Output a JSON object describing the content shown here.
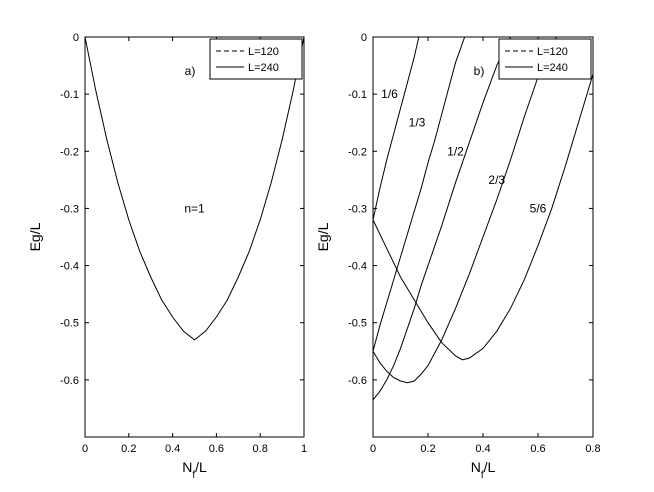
{
  "chart_data": [
    {
      "type": "line",
      "panel_label": "a)",
      "xlabel": "N_f/L",
      "ylabel": "Eg/L",
      "xlim": [
        0,
        1
      ],
      "ylim": [
        -0.7,
        0
      ],
      "xticks": [
        0,
        0.2,
        0.4,
        0.6,
        0.8,
        1
      ],
      "xtick_labels": [
        "0",
        "0.2",
        "0.4",
        "0.6",
        "0.8",
        "1"
      ],
      "yticks": [
        0,
        -0.1,
        -0.2,
        -0.3,
        -0.4,
        -0.5,
        -0.6
      ],
      "ytick_labels": [
        "0",
        "-0.1",
        "-0.2",
        "-0.3",
        "-0.4",
        "-0.5",
        "-0.6"
      ],
      "legend": {
        "position": "top-right",
        "entries": [
          {
            "label": "L=120",
            "style": "dashed"
          },
          {
            "label": "L=240",
            "style": "solid"
          }
        ]
      },
      "grid": false,
      "series": [
        {
          "label": "n=1",
          "label_at": [
            0.5,
            -0.3
          ],
          "x": [
            0,
            0.05,
            0.1,
            0.15,
            0.2,
            0.25,
            0.3,
            0.35,
            0.4,
            0.45,
            0.5,
            0.55,
            0.6,
            0.65,
            0.7,
            0.75,
            0.8,
            0.85,
            0.9,
            0.95,
            1.0
          ],
          "y": [
            0,
            -0.095,
            -0.18,
            -0.255,
            -0.32,
            -0.375,
            -0.42,
            -0.46,
            -0.49,
            -0.515,
            -0.53,
            -0.515,
            -0.49,
            -0.46,
            -0.42,
            -0.375,
            -0.32,
            -0.255,
            -0.18,
            -0.095,
            0
          ]
        }
      ]
    },
    {
      "type": "line",
      "panel_label": "b)",
      "xlabel": "N_f/L",
      "ylabel": "Eg/L",
      "xlim": [
        0,
        0.8
      ],
      "ylim": [
        -0.7,
        0
      ],
      "xticks": [
        0,
        0.2,
        0.4,
        0.6,
        0.8
      ],
      "xtick_labels": [
        "0",
        "0.2",
        "0.4",
        "0.6",
        "0.8"
      ],
      "yticks": [
        0,
        -0.1,
        -0.2,
        -0.3,
        -0.4,
        -0.5,
        -0.6
      ],
      "ytick_labels": [
        "0",
        "-0.1",
        "-0.2",
        "-0.3",
        "-0.4",
        "-0.5",
        "-0.6"
      ],
      "legend": {
        "position": "top-right",
        "entries": [
          {
            "label": "L=120",
            "style": "dashed"
          },
          {
            "label": "L=240",
            "style": "solid"
          }
        ]
      },
      "grid": false,
      "series": [
        {
          "label": "1/6",
          "label_at": [
            0.06,
            -0.1
          ],
          "x": [
            0,
            0.025,
            0.05,
            0.075,
            0.1,
            0.125,
            0.15,
            0.1667
          ],
          "y": [
            -0.32,
            -0.265,
            -0.215,
            -0.17,
            -0.125,
            -0.08,
            -0.035,
            0
          ]
        },
        {
          "label": "1/3",
          "label_at": [
            0.16,
            -0.15
          ],
          "x": [
            0,
            0.025,
            0.05,
            0.075,
            0.1,
            0.125,
            0.15,
            0.175,
            0.2,
            0.225,
            0.25,
            0.275,
            0.3,
            0.3333
          ],
          "y": [
            -0.55,
            -0.505,
            -0.465,
            -0.425,
            -0.385,
            -0.345,
            -0.305,
            -0.265,
            -0.22,
            -0.18,
            -0.135,
            -0.09,
            -0.045,
            0
          ]
        },
        {
          "label": "1/2",
          "label_at": [
            0.3,
            -0.2
          ],
          "x": [
            0,
            0.025,
            0.05,
            0.075,
            0.1,
            0.125,
            0.15,
            0.175,
            0.2,
            0.25,
            0.3,
            0.35,
            0.4,
            0.45,
            0.5
          ],
          "y": [
            -0.635,
            -0.62,
            -0.6,
            -0.575,
            -0.545,
            -0.51,
            -0.475,
            -0.435,
            -0.4,
            -0.33,
            -0.255,
            -0.185,
            -0.115,
            -0.05,
            0
          ]
        },
        {
          "label": "2/3",
          "label_at": [
            0.45,
            -0.25
          ],
          "x": [
            0,
            0.025,
            0.05,
            0.075,
            0.1,
            0.125,
            0.15,
            0.175,
            0.2,
            0.25,
            0.3,
            0.35,
            0.4,
            0.45,
            0.5,
            0.55,
            0.6,
            0.6667
          ],
          "y": [
            -0.55,
            -0.57,
            -0.585,
            -0.596,
            -0.602,
            -0.605,
            -0.602,
            -0.59,
            -0.575,
            -0.53,
            -0.475,
            -0.415,
            -0.35,
            -0.285,
            -0.215,
            -0.14,
            -0.07,
            0
          ]
        },
        {
          "label": "5/6",
          "label_at": [
            0.6,
            -0.3
          ],
          "x": [
            0,
            0.05,
            0.1,
            0.15,
            0.2,
            0.25,
            0.3,
            0.325,
            0.35,
            0.4,
            0.45,
            0.5,
            0.55,
            0.6,
            0.65,
            0.7,
            0.75,
            0.8
          ],
          "y": [
            -0.32,
            -0.37,
            -0.42,
            -0.46,
            -0.5,
            -0.535,
            -0.558,
            -0.565,
            -0.562,
            -0.545,
            -0.515,
            -0.475,
            -0.425,
            -0.365,
            -0.3,
            -0.225,
            -0.145,
            -0.065
          ]
        }
      ]
    }
  ]
}
